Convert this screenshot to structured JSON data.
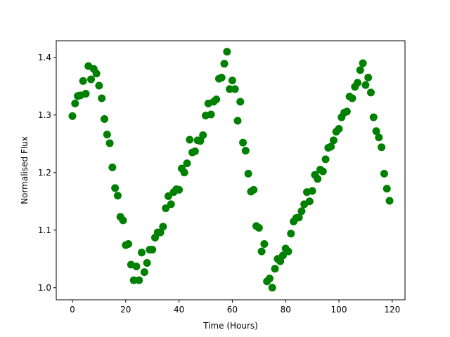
{
  "chart_data": {
    "type": "scatter",
    "title": "",
    "xlabel": "Time (Hours)",
    "ylabel": "Normalised Flux",
    "xlim": [
      -6.07,
      124.8
    ],
    "ylim": [
      0.979,
      1.429
    ],
    "xticks": [
      0,
      20,
      40,
      60,
      80,
      100,
      120
    ],
    "xtick_labels": [
      "0",
      "20",
      "40",
      "60",
      "80",
      "100",
      "120"
    ],
    "yticks": [
      1.0,
      1.1,
      1.2,
      1.3,
      1.4
    ],
    "ytick_labels": [
      "1.0",
      "1.1",
      "1.2",
      "1.3",
      "1.4"
    ],
    "grid": false,
    "marker_color": "#008000",
    "series": [
      {
        "x": [
          0,
          1,
          2,
          3,
          4,
          5,
          6,
          7,
          8,
          9,
          10,
          11,
          12,
          13,
          14,
          15,
          16,
          17,
          18,
          19,
          20,
          21,
          22,
          23,
          24,
          25,
          26,
          27,
          28,
          29,
          30,
          31,
          32,
          33,
          34,
          35,
          36,
          37,
          38,
          39,
          40,
          41,
          42,
          43,
          44,
          45,
          46,
          47,
          48,
          49,
          50,
          51,
          52,
          53,
          54,
          55,
          56,
          57,
          58,
          59,
          60,
          61,
          62,
          63,
          64,
          65,
          66,
          67,
          68,
          69,
          70,
          71,
          72,
          73,
          74,
          75,
          76,
          77,
          78,
          79,
          80,
          81,
          82,
          83,
          84,
          85,
          86,
          87,
          88,
          89,
          90,
          91,
          92,
          93,
          94,
          95,
          96,
          97,
          98,
          99,
          100,
          101,
          102,
          103,
          104,
          105,
          106,
          107,
          108,
          109,
          110,
          111,
          112,
          113,
          114,
          115,
          116,
          117,
          118,
          119
        ],
        "y": [
          1.298,
          1.32,
          1.333,
          1.334,
          1.359,
          1.337,
          1.385,
          1.362,
          1.38,
          1.372,
          1.351,
          1.329,
          1.293,
          1.266,
          1.251,
          1.209,
          1.173,
          1.16,
          1.123,
          1.117,
          1.074,
          1.076,
          1.04,
          1.013,
          1.037,
          1.013,
          1.061,
          1.027,
          1.043,
          1.066,
          1.066,
          1.087,
          1.096,
          1.096,
          1.106,
          1.138,
          1.159,
          1.145,
          1.166,
          1.171,
          1.17,
          1.207,
          1.2,
          1.216,
          1.257,
          1.235,
          1.237,
          1.256,
          1.255,
          1.265,
          1.299,
          1.32,
          1.301,
          1.323,
          1.327,
          1.363,
          1.365,
          1.389,
          1.41,
          1.345,
          1.36,
          1.345,
          1.29,
          1.323,
          1.252,
          1.238,
          1.198,
          1.167,
          1.17,
          1.107,
          1.104,
          1.063,
          1.076,
          1.011,
          1.016,
          1.0,
          1.033,
          1.05,
          1.046,
          1.056,
          1.068,
          1.063,
          1.094,
          1.115,
          1.121,
          1.122,
          1.133,
          1.145,
          1.166,
          1.15,
          1.168,
          1.196,
          1.189,
          1.205,
          1.202,
          1.223,
          1.243,
          1.245,
          1.256,
          1.271,
          1.276,
          1.296,
          1.304,
          1.306,
          1.332,
          1.329,
          1.349,
          1.356,
          1.378,
          1.39,
          1.352,
          1.365,
          1.339,
          1.296,
          1.272,
          1.261,
          1.244,
          1.198,
          1.172,
          1.151
        ]
      }
    ]
  }
}
